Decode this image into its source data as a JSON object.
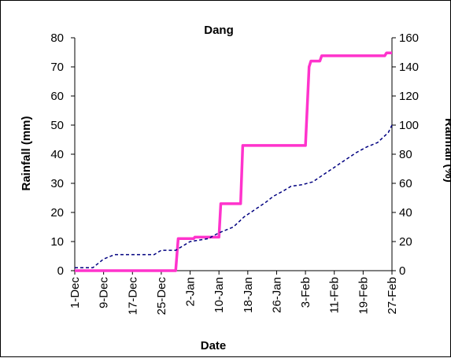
{
  "chart_data": {
    "type": "line",
    "title": "Dang",
    "xlabel": "Date",
    "ylabel": "Rainfall (mm)",
    "y2label": "Rainfall (%)",
    "ylim": [
      0,
      80
    ],
    "y2lim": [
      0,
      160
    ],
    "yticks": [
      0,
      10,
      20,
      30,
      40,
      50,
      60,
      70,
      80
    ],
    "y2ticks": [
      0,
      20,
      40,
      60,
      80,
      100,
      120,
      140,
      160
    ],
    "x_tick_labels": [
      "1-Dec",
      "9-Dec",
      "17-Dec",
      "25-Dec",
      "2-Jan",
      "10-Jan",
      "18-Jan",
      "26-Jan",
      "3-Feb",
      "11-Feb",
      "19-Feb",
      "27-Feb"
    ],
    "x_tick_day_index": [
      0,
      8,
      16,
      24,
      32,
      40,
      48,
      56,
      64,
      72,
      80,
      88
    ],
    "x_day_count": 89,
    "legend": "none",
    "grid": false,
    "series": [
      {
        "axis": "left",
        "color": "#ff33cc",
        "style": "solid",
        "x_day_index": [
          0,
          28,
          28.7,
          33,
          33.3,
          40,
          40.5,
          46,
          46.6,
          55,
          55.6,
          64,
          65,
          65.5,
          68,
          68.5,
          86,
          86.5,
          88
        ],
        "values": [
          0,
          0,
          11,
          11,
          11.5,
          11.5,
          23,
          23,
          43,
          43,
          43,
          43,
          70,
          72,
          72,
          73.8,
          73.8,
          74.8,
          74.8
        ]
      },
      {
        "axis": "right",
        "color": "#000080",
        "style": "dashed",
        "x_day_index": [
          0,
          5,
          8,
          11,
          18,
          22,
          24,
          28,
          32,
          37,
          40,
          44,
          47,
          50,
          53,
          55,
          58,
          60,
          63,
          66,
          69,
          72,
          75,
          78,
          81,
          84,
          87,
          88
        ],
        "values": [
          2,
          2,
          8,
          11,
          11,
          11,
          14,
          14,
          20,
          22,
          26,
          30,
          37,
          42,
          47,
          51,
          55,
          58,
          59,
          61,
          66,
          71,
          76,
          81,
          85,
          88,
          95,
          100
        ]
      }
    ]
  }
}
